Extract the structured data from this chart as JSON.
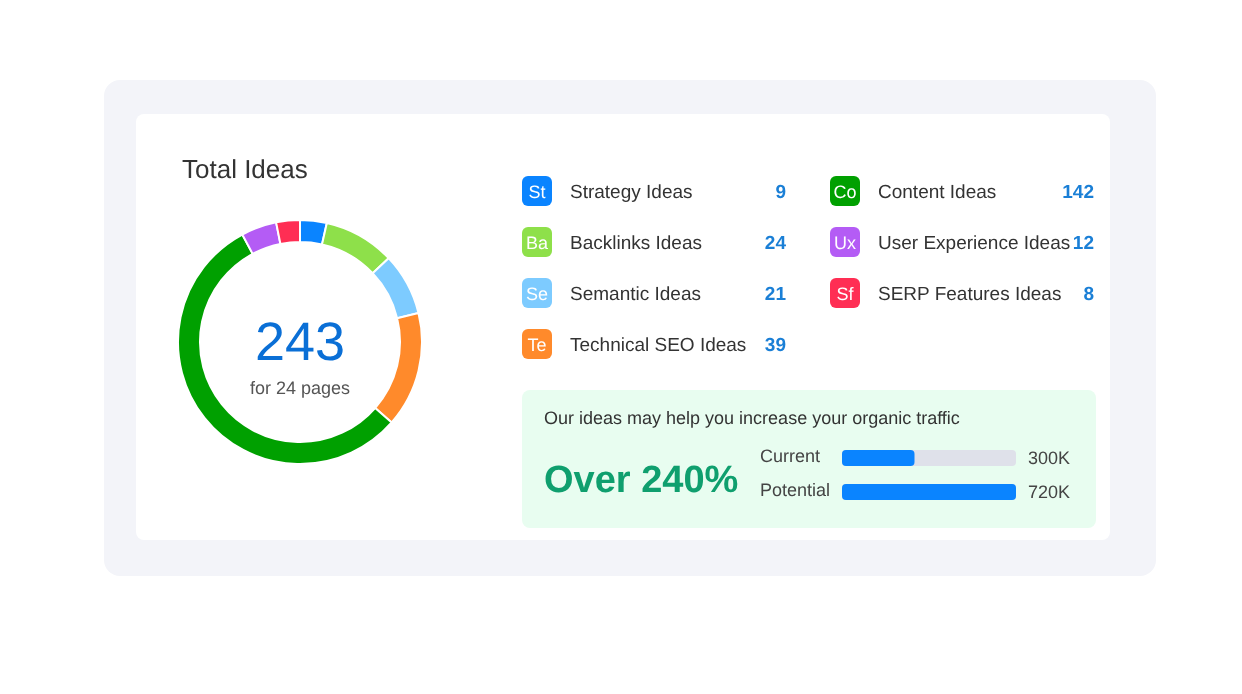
{
  "chart_data": [
    {
      "type": "donut",
      "title": "Total Ideas",
      "categories": [
        "Strategy Ideas",
        "Backlinks Ideas",
        "Semantic Ideas",
        "Technical SEO Ideas",
        "Content Ideas",
        "User Experience Ideas",
        "SERP Features Ideas"
      ],
      "values": [
        9,
        24,
        21,
        39,
        142,
        12,
        8
      ],
      "colors": [
        "#0a84ff",
        "#8ee04a",
        "#7dcbff",
        "#ff8a2b",
        "#00a000",
        "#b45cf5",
        "#ff2e54"
      ],
      "data_labels": true,
      "legend": "right",
      "annotations": [
        "243",
        "for 24 pages",
        "St",
        "Ba",
        "Se",
        "Te",
        "Co",
        "Ux",
        "Sf"
      ]
    },
    {
      "type": "bar",
      "orientation": "horizontal",
      "title": "Our ideas may help you increase your organic traffic",
      "categories": [
        "Current",
        "Potential"
      ],
      "values": [
        300000,
        720000
      ],
      "value_labels": [
        "300K",
        "720K"
      ],
      "color": "#0a84ff",
      "annotations": [
        "Over 240%"
      ]
    }
  ]
}
